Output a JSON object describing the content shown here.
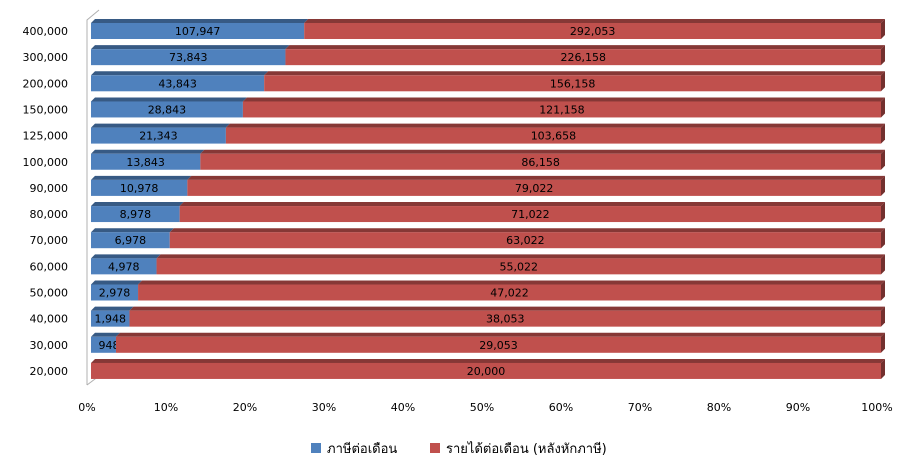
{
  "chart_data": {
    "type": "bar",
    "orientation": "horizontal",
    "stacked": "percent",
    "title": "",
    "xlabel": "",
    "ylabel": "",
    "categories": [
      "400,000",
      "300,000",
      "200,000",
      "150,000",
      "125,000",
      "100,000",
      "90,000",
      "80,000",
      "70,000",
      "60,000",
      "50,000",
      "40,000",
      "30,000",
      "20,000"
    ],
    "series": [
      {
        "name": "ภาษีต่อเดือน",
        "color": "#4F81BD",
        "values": [
          107947,
          73843,
          43843,
          28843,
          21343,
          13843,
          10978,
          8978,
          6978,
          4978,
          2978,
          1948,
          948,
          0
        ],
        "labels": [
          "107,947",
          "73,843",
          "43,843",
          "28,843",
          "21,343",
          "13,843",
          "10,978",
          "8,978",
          "6,978",
          "4,978",
          "2,978",
          "1,948",
          "948",
          "-"
        ]
      },
      {
        "name": "รายได้ต่อเดือน (หลังหักภาษี)",
        "color": "#C0504D",
        "values": [
          292053,
          226158,
          156158,
          121158,
          103658,
          86158,
          79022,
          71022,
          63022,
          55022,
          47022,
          38053,
          29053,
          20000
        ],
        "labels": [
          "292,053",
          "226,158",
          "156,158",
          "121,158",
          "103,658",
          "86,158",
          "79,022",
          "71,022",
          "63,022",
          "55,022",
          "47,022",
          "38,053",
          "29,053",
          "20,000"
        ]
      }
    ],
    "xticks": [
      "0%",
      "10%",
      "20%",
      "30%",
      "40%",
      "50%",
      "60%",
      "70%",
      "80%",
      "90%",
      "100%"
    ],
    "xlim": [
      0,
      100
    ],
    "grid": false,
    "legend": "bottom"
  }
}
